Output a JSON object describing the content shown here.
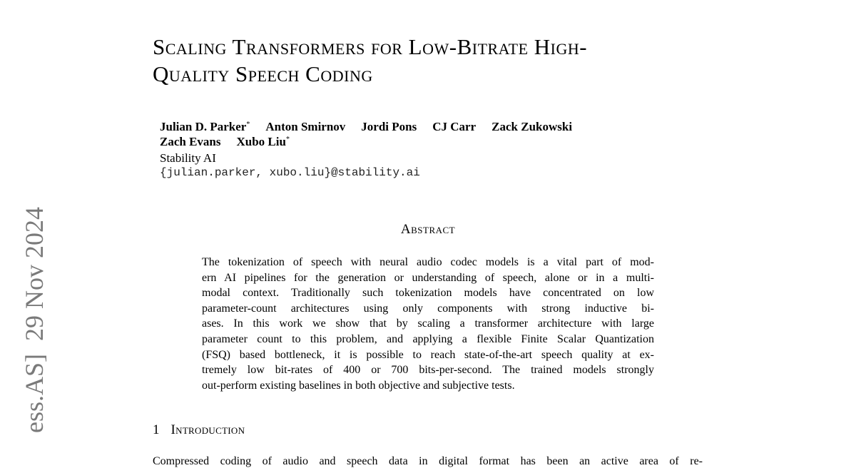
{
  "sidebar": "ess.AS]  29 Nov 2024",
  "title": {
    "lines": [
      "Scaling Transformers for Low-Bitrate High-",
      "Quality Speech Coding"
    ]
  },
  "authors": {
    "lines": [
      [
        {
          "name": "Julian D. Parker",
          "mark": "*"
        },
        {
          "name": "Anton Smirnov"
        },
        {
          "name": "Jordi Pons"
        },
        {
          "name": "CJ Carr"
        },
        {
          "name": "Zack Zukowski"
        }
      ],
      [
        {
          "name": "Zach Evans"
        },
        {
          "name": "Xubo Liu",
          "mark": "*"
        }
      ]
    ],
    "affiliation": "Stability AI",
    "email": "{julian.parker, xubo.liu}@stability.ai"
  },
  "abstract": {
    "heading": "Abstract",
    "lines": [
      "The tokenization of speech with neural audio codec models is a vital part of mod-",
      "ern AI pipelines for the generation or understanding of speech, alone or in a multi-",
      "modal context. Traditionally such tokenization models have concentrated on low",
      "parameter-count architectures using only components with strong inductive bi-",
      "ases. In this work we show that by scaling a transformer architecture with large",
      "parameter count to this problem, and applying a flexible Finite Scalar Quantization",
      "(FSQ) based bottleneck, it is possible to reach state-of-the-art speech quality at ex-",
      "tremely low bit-rates of 400 or 700 bits-per-second. The trained models strongly",
      "out-perform existing baselines in both objective and subjective tests."
    ]
  },
  "section": {
    "number": "1",
    "title": "Introduction",
    "first_line": "Compressed coding of audio and speech data in digital format has been an active area of re-"
  }
}
